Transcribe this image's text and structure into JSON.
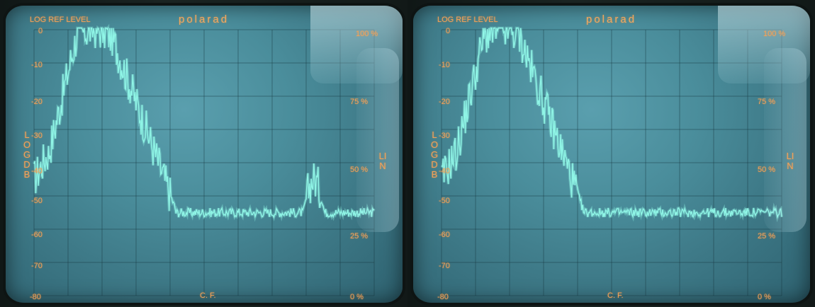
{
  "panels": [
    {
      "id": "left",
      "header": {
        "ref_level": "LOG REF LEVEL",
        "brand": "polarad"
      },
      "log_axis": {
        "ticks": [
          "0",
          "-10",
          "-20",
          "-30",
          "-40",
          "-50",
          "-60",
          "-70",
          "-80"
        ],
        "vertical_label": "LOG DB"
      },
      "lin_axis": {
        "ticks": [
          "100 %",
          "75 %",
          "50 %",
          "25 %",
          "0 %"
        ],
        "vertical_label": "LIN"
      },
      "center_label": "C. F."
    },
    {
      "id": "right",
      "header": {
        "ref_level": "LOG REF LEVEL",
        "brand": "polarad"
      },
      "log_axis": {
        "ticks": [
          "0",
          "-10",
          "-20",
          "-30",
          "-40",
          "-50",
          "-60",
          "-70",
          "-80"
        ],
        "vertical_label": "LOG DB"
      },
      "lin_axis": {
        "ticks": [
          "100 %",
          "75 %",
          "50 %",
          "25 %",
          "0 %"
        ],
        "vertical_label": "LIN"
      },
      "center_label": "C. F."
    }
  ],
  "colors": {
    "trace": "#8ff5e6",
    "screen": "#4a8d9b",
    "labels": "#f2a25a"
  }
}
